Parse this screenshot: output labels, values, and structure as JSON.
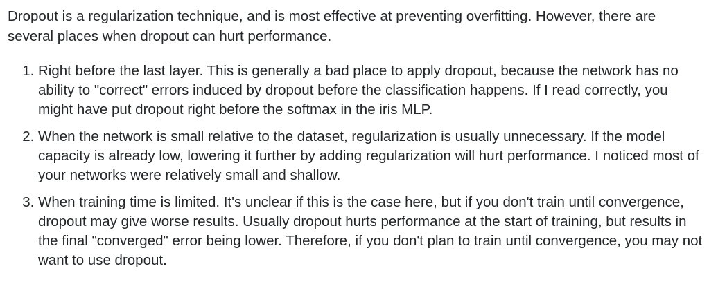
{
  "answer": {
    "intro": "Dropout is a regularization technique, and is most effective at preventing overfitting. However, there are several places when dropout can hurt performance.",
    "points": [
      "Right before the last layer. This is generally a bad place to apply dropout, because the network has no ability to \"correct\" errors induced by dropout before the classification happens. If I read correctly, you might have put dropout right before the softmax in the iris MLP.",
      "When the network is small relative to the dataset, regularization is usually unnecessary. If the model capacity is already low, lowering it further by adding regularization will hurt performance. I noticed most of your networks were relatively small and shallow.",
      "When training time is limited. It's unclear if this is the case here, but if you don't train until convergence, dropout may give worse results. Usually dropout hurts performance at the start of training, but results in the final \"converged\" error being lower. Therefore, if you don't plan to train until convergence, you may not want to use dropout."
    ]
  }
}
